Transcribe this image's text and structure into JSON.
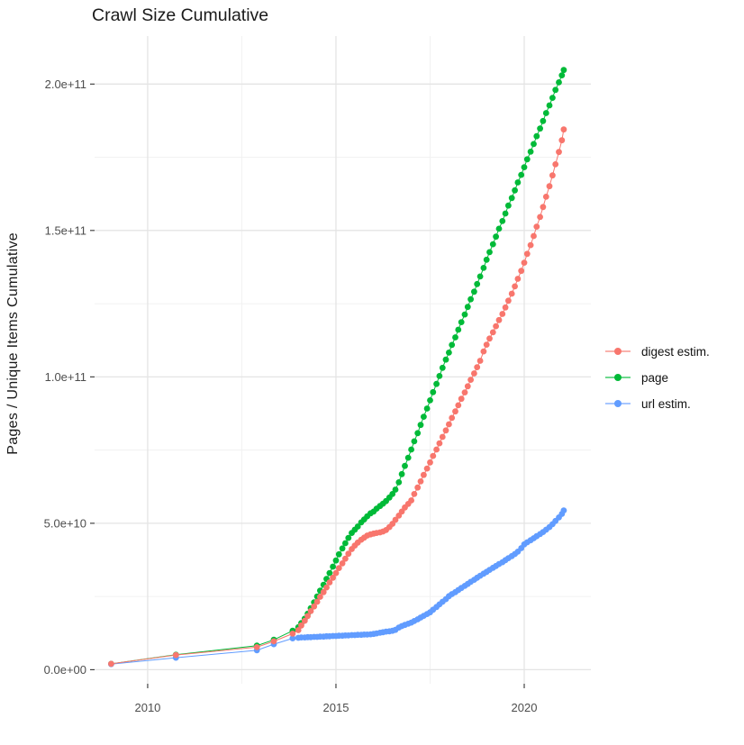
{
  "chart": {
    "title": "Crawl Size Cumulative",
    "y_axis": {
      "title": "Pages / Unique Items Cumulative",
      "tick_labels": [
        "0.0e+00",
        "5.0e+10",
        "1.0e+11",
        "1.5e+11",
        "2.0e+11"
      ],
      "tick_values_billions": [
        0,
        50,
        100,
        150,
        200
      ],
      "minor_values_billions": [
        25,
        75,
        125,
        175
      ]
    },
    "x_axis": {
      "tick_labels": [
        "2010",
        "2015",
        "2020"
      ],
      "tick_values": [
        2010,
        2015,
        2020
      ],
      "minor_values": [
        2012.5,
        2017.5
      ]
    },
    "legend": [
      {
        "label": "digest estim.",
        "color": "#F8766D"
      },
      {
        "label": "page",
        "color": "#00BA38"
      },
      {
        "label": "url estim.",
        "color": "#619CFF"
      }
    ],
    "colors": {
      "grid_major": "#e4e4e4",
      "grid_minor": "#f1f1f1",
      "tick_mark": "#333333",
      "tick_text": "#4d4d4d",
      "text": "#1a1a1a"
    }
  },
  "chart_data": {
    "type": "line",
    "title": "Crawl Size Cumulative",
    "xlabel": "",
    "ylabel": "Pages / Unique Items Cumulative",
    "xlim": [
      2008.59,
      2021.77
    ],
    "ylim_billions": [
      -4.8,
      216.4
    ],
    "grid": true,
    "legend_position": "right",
    "values_unit": "pages, stored in billions (1e9)",
    "draw_order": [
      1,
      2,
      0
    ],
    "series": [
      {
        "name": "digest estim.",
        "color": "#F8766D",
        "points": [
          [
            2009.03,
            2.0
          ],
          [
            2010.75,
            5.0
          ],
          [
            2012.9,
            7.7
          ],
          [
            2013.35,
            9.7
          ],
          [
            2013.85,
            12.3
          ],
          [
            2014.0,
            13.5
          ],
          [
            2014.08,
            15.1
          ],
          [
            2014.17,
            16.7
          ],
          [
            2014.25,
            18.3
          ],
          [
            2014.33,
            20.0
          ],
          [
            2014.42,
            21.6
          ],
          [
            2014.5,
            23.2
          ],
          [
            2014.58,
            24.9
          ],
          [
            2014.67,
            26.5
          ],
          [
            2014.75,
            28.1
          ],
          [
            2014.83,
            29.8
          ],
          [
            2014.92,
            31.4
          ],
          [
            2015.0,
            33.0
          ],
          [
            2015.08,
            34.7
          ],
          [
            2015.17,
            36.3
          ],
          [
            2015.25,
            37.9
          ],
          [
            2015.33,
            39.6
          ],
          [
            2015.42,
            41.2
          ],
          [
            2015.5,
            42.4
          ],
          [
            2015.58,
            43.4
          ],
          [
            2015.67,
            44.4
          ],
          [
            2015.75,
            45.1
          ],
          [
            2015.83,
            45.8
          ],
          [
            2015.92,
            46.2
          ],
          [
            2016.0,
            46.5
          ],
          [
            2016.08,
            46.7
          ],
          [
            2016.17,
            46.9
          ],
          [
            2016.25,
            47.2
          ],
          [
            2016.33,
            47.7
          ],
          [
            2016.42,
            48.7
          ],
          [
            2016.5,
            49.8
          ],
          [
            2016.58,
            51.2
          ],
          [
            2016.67,
            52.6
          ],
          [
            2016.75,
            54.0
          ],
          [
            2016.83,
            55.4
          ],
          [
            2016.92,
            56.6
          ],
          [
            2017.0,
            57.8
          ],
          [
            2017.08,
            60.0
          ],
          [
            2017.17,
            62.2
          ],
          [
            2017.25,
            64.3
          ],
          [
            2017.33,
            66.5
          ],
          [
            2017.42,
            68.7
          ],
          [
            2017.5,
            70.8
          ],
          [
            2017.58,
            73.0
          ],
          [
            2017.67,
            75.2
          ],
          [
            2017.75,
            77.3
          ],
          [
            2017.83,
            79.5
          ],
          [
            2017.92,
            81.7
          ],
          [
            2018.0,
            83.8
          ],
          [
            2018.08,
            86.0
          ],
          [
            2018.17,
            88.2
          ],
          [
            2018.25,
            90.3
          ],
          [
            2018.33,
            92.5
          ],
          [
            2018.42,
            94.7
          ],
          [
            2018.5,
            96.8
          ],
          [
            2018.58,
            99.0
          ],
          [
            2018.67,
            101.2
          ],
          [
            2018.75,
            103.3
          ],
          [
            2018.83,
            105.5
          ],
          [
            2018.92,
            108.7
          ],
          [
            2019.0,
            111.0
          ],
          [
            2019.08,
            113.1
          ],
          [
            2019.17,
            115.2
          ],
          [
            2019.25,
            117.3
          ],
          [
            2019.33,
            119.4
          ],
          [
            2019.42,
            121.5
          ],
          [
            2019.5,
            123.7
          ],
          [
            2019.58,
            126.0
          ],
          [
            2019.67,
            128.4
          ],
          [
            2019.75,
            130.9
          ],
          [
            2019.83,
            133.5
          ],
          [
            2019.92,
            136.2
          ],
          [
            2020.0,
            139.0
          ],
          [
            2020.08,
            142.0
          ],
          [
            2020.17,
            145.0
          ],
          [
            2020.25,
            148.1
          ],
          [
            2020.33,
            151.3
          ],
          [
            2020.42,
            154.6
          ],
          [
            2020.5,
            158.0
          ],
          [
            2020.58,
            161.5
          ],
          [
            2020.67,
            165.1
          ],
          [
            2020.75,
            168.8
          ],
          [
            2020.83,
            172.6
          ],
          [
            2020.92,
            176.8
          ],
          [
            2021.0,
            180.8
          ],
          [
            2021.05,
            184.5
          ]
        ]
      },
      {
        "name": "page",
        "color": "#00BA38",
        "points": [
          [
            2009.03,
            2.0
          ],
          [
            2010.75,
            5.1
          ],
          [
            2012.9,
            8.2
          ],
          [
            2013.35,
            10.2
          ],
          [
            2013.85,
            13.3
          ],
          [
            2014.0,
            14.5
          ],
          [
            2014.08,
            15.9
          ],
          [
            2014.17,
            17.4
          ],
          [
            2014.25,
            19.1
          ],
          [
            2014.33,
            21.0
          ],
          [
            2014.42,
            23.0
          ],
          [
            2014.5,
            25.0
          ],
          [
            2014.58,
            27.0
          ],
          [
            2014.67,
            29.0
          ],
          [
            2014.75,
            31.0
          ],
          [
            2014.83,
            33.0
          ],
          [
            2014.92,
            35.2
          ],
          [
            2015.0,
            37.3
          ],
          [
            2015.08,
            39.4
          ],
          [
            2015.17,
            41.4
          ],
          [
            2015.25,
            43.2
          ],
          [
            2015.33,
            45.0
          ],
          [
            2015.42,
            46.7
          ],
          [
            2015.5,
            47.8
          ],
          [
            2015.58,
            48.9
          ],
          [
            2015.67,
            50.3
          ],
          [
            2015.75,
            51.3
          ],
          [
            2015.83,
            52.4
          ],
          [
            2015.92,
            53.4
          ],
          [
            2016.0,
            54.0
          ],
          [
            2016.08,
            55.0
          ],
          [
            2016.17,
            55.9
          ],
          [
            2016.25,
            56.7
          ],
          [
            2016.33,
            57.6
          ],
          [
            2016.42,
            58.8
          ],
          [
            2016.5,
            60.0
          ],
          [
            2016.58,
            61.5
          ],
          [
            2016.67,
            64.0
          ],
          [
            2016.75,
            66.8
          ],
          [
            2016.83,
            69.6
          ],
          [
            2016.92,
            72.4
          ],
          [
            2017.0,
            75.2
          ],
          [
            2017.08,
            78.0
          ],
          [
            2017.17,
            80.8
          ],
          [
            2017.25,
            83.6
          ],
          [
            2017.33,
            86.4
          ],
          [
            2017.42,
            89.2
          ],
          [
            2017.5,
            92.0
          ],
          [
            2017.58,
            94.8
          ],
          [
            2017.67,
            97.6
          ],
          [
            2017.75,
            100.3
          ],
          [
            2017.83,
            103.1
          ],
          [
            2017.92,
            105.9
          ],
          [
            2018.0,
            108.3
          ],
          [
            2018.08,
            110.9
          ],
          [
            2018.17,
            113.5
          ],
          [
            2018.25,
            116.1
          ],
          [
            2018.33,
            118.7
          ],
          [
            2018.42,
            121.3
          ],
          [
            2018.5,
            123.9
          ],
          [
            2018.58,
            126.5
          ],
          [
            2018.67,
            129.1
          ],
          [
            2018.75,
            131.7
          ],
          [
            2018.83,
            134.3
          ],
          [
            2018.92,
            137.2
          ],
          [
            2019.0,
            140.0
          ],
          [
            2019.08,
            142.6
          ],
          [
            2019.17,
            145.3
          ],
          [
            2019.25,
            147.9
          ],
          [
            2019.33,
            150.6
          ],
          [
            2019.42,
            153.2
          ],
          [
            2019.5,
            155.8
          ],
          [
            2019.58,
            158.5
          ],
          [
            2019.67,
            161.1
          ],
          [
            2019.75,
            163.7
          ],
          [
            2019.83,
            166.4
          ],
          [
            2019.92,
            169.0
          ],
          [
            2020.0,
            171.6
          ],
          [
            2020.08,
            174.3
          ],
          [
            2020.17,
            176.9
          ],
          [
            2020.25,
            179.5
          ],
          [
            2020.33,
            182.2
          ],
          [
            2020.42,
            184.8
          ],
          [
            2020.5,
            187.4
          ],
          [
            2020.58,
            190.1
          ],
          [
            2020.67,
            192.7
          ],
          [
            2020.75,
            195.3
          ],
          [
            2020.83,
            198.0
          ],
          [
            2020.92,
            200.6
          ],
          [
            2021.0,
            203.0
          ],
          [
            2021.05,
            204.8
          ]
        ]
      },
      {
        "name": "url estim.",
        "color": "#619CFF",
        "points": [
          [
            2009.03,
            1.9
          ],
          [
            2010.75,
            4.1
          ],
          [
            2012.9,
            6.6
          ],
          [
            2013.35,
            8.7
          ],
          [
            2013.85,
            10.7
          ],
          [
            2014.0,
            10.9
          ],
          [
            2014.08,
            11.0
          ],
          [
            2014.17,
            11.0
          ],
          [
            2014.25,
            11.1
          ],
          [
            2014.33,
            11.1
          ],
          [
            2014.42,
            11.2
          ],
          [
            2014.5,
            11.2
          ],
          [
            2014.58,
            11.3
          ],
          [
            2014.67,
            11.3
          ],
          [
            2014.75,
            11.4
          ],
          [
            2014.83,
            11.4
          ],
          [
            2014.92,
            11.5
          ],
          [
            2015.0,
            11.5
          ],
          [
            2015.08,
            11.6
          ],
          [
            2015.17,
            11.6
          ],
          [
            2015.25,
            11.7
          ],
          [
            2015.33,
            11.7
          ],
          [
            2015.42,
            11.8
          ],
          [
            2015.5,
            11.8
          ],
          [
            2015.58,
            11.9
          ],
          [
            2015.67,
            11.9
          ],
          [
            2015.75,
            12.0
          ],
          [
            2015.83,
            12.0
          ],
          [
            2015.92,
            12.1
          ],
          [
            2016.0,
            12.2
          ],
          [
            2016.08,
            12.4
          ],
          [
            2016.17,
            12.6
          ],
          [
            2016.25,
            12.8
          ],
          [
            2016.33,
            13.0
          ],
          [
            2016.42,
            13.1
          ],
          [
            2016.5,
            13.3
          ],
          [
            2016.58,
            13.6
          ],
          [
            2016.67,
            14.4
          ],
          [
            2016.75,
            14.9
          ],
          [
            2016.83,
            15.3
          ],
          [
            2016.92,
            15.7
          ],
          [
            2017.0,
            16.1
          ],
          [
            2017.08,
            16.6
          ],
          [
            2017.17,
            17.2
          ],
          [
            2017.25,
            17.8
          ],
          [
            2017.33,
            18.4
          ],
          [
            2017.42,
            19.0
          ],
          [
            2017.5,
            19.6
          ],
          [
            2017.58,
            20.5
          ],
          [
            2017.67,
            21.4
          ],
          [
            2017.75,
            22.3
          ],
          [
            2017.83,
            23.2
          ],
          [
            2017.92,
            24.1
          ],
          [
            2018.0,
            25.1
          ],
          [
            2018.08,
            25.8
          ],
          [
            2018.17,
            26.5
          ],
          [
            2018.25,
            27.2
          ],
          [
            2018.33,
            27.9
          ],
          [
            2018.42,
            28.6
          ],
          [
            2018.5,
            29.3
          ],
          [
            2018.58,
            30.0
          ],
          [
            2018.67,
            30.7
          ],
          [
            2018.75,
            31.4
          ],
          [
            2018.83,
            32.1
          ],
          [
            2018.92,
            32.8
          ],
          [
            2019.0,
            33.4
          ],
          [
            2019.08,
            34.1
          ],
          [
            2019.17,
            34.8
          ],
          [
            2019.25,
            35.4
          ],
          [
            2019.33,
            36.1
          ],
          [
            2019.42,
            36.7
          ],
          [
            2019.5,
            37.4
          ],
          [
            2019.58,
            38.1
          ],
          [
            2019.67,
            38.8
          ],
          [
            2019.75,
            39.5
          ],
          [
            2019.83,
            40.3
          ],
          [
            2019.92,
            41.5
          ],
          [
            2020.0,
            42.8
          ],
          [
            2020.08,
            43.5
          ],
          [
            2020.17,
            44.2
          ],
          [
            2020.25,
            44.9
          ],
          [
            2020.33,
            45.6
          ],
          [
            2020.42,
            46.3
          ],
          [
            2020.5,
            47.0
          ],
          [
            2020.58,
            47.8
          ],
          [
            2020.67,
            48.7
          ],
          [
            2020.75,
            49.7
          ],
          [
            2020.83,
            50.8
          ],
          [
            2020.92,
            52.0
          ],
          [
            2021.0,
            53.2
          ],
          [
            2021.05,
            54.4
          ]
        ]
      }
    ]
  }
}
